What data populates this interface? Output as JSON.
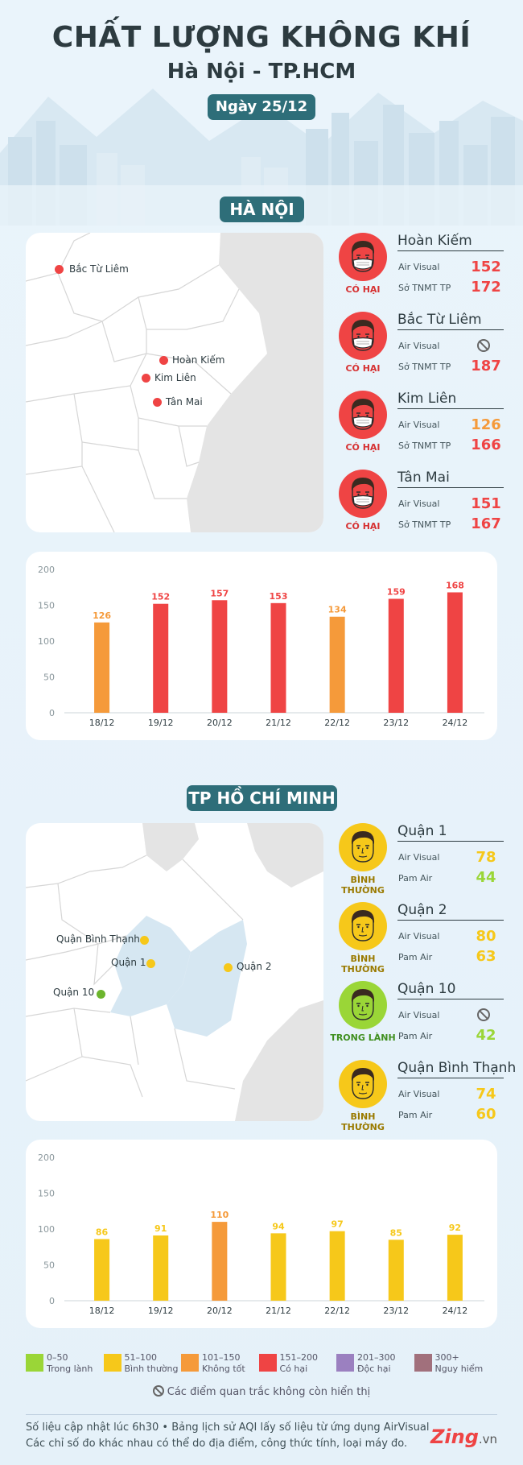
{
  "header": {
    "title": "CHẤT LƯỢNG KHÔNG KHÍ",
    "subtitle": "Hà Nội - TP.HCM",
    "date": "Ngày 25/12"
  },
  "colors": {
    "good": "#9ad637",
    "moderate": "#f6c81a",
    "sensitive": "#f59a3a",
    "unhealthy": "#ef4444",
    "very_unhealthy": "#9b80c0",
    "hazardous": "#a1707c",
    "pill": "#2e6e79"
  },
  "hanoi": {
    "section_title": "HÀ NỘI",
    "map_labels": [
      "Bắc Từ Liêm",
      "Hoàn Kiếm",
      "Kim Liên",
      "Tân Mai"
    ],
    "stations": [
      {
        "name": "Hoàn Kiếm",
        "status": "CÓ HẠI",
        "face_icon": "unhealthy-face-icon",
        "src1": "Air Visual",
        "v1": "152",
        "src2": "Sở TNMT TP",
        "v2": "172",
        "c1": "#ef4444",
        "c2": "#ef4444"
      },
      {
        "name": "Bắc Từ Liêm",
        "status": "CÓ HẠI",
        "face_icon": "unhealthy-face-icon",
        "src1": "Air Visual",
        "v1": null,
        "src2": "Sở TNMT TP",
        "v2": "187",
        "c1": "#ef4444",
        "c2": "#ef4444"
      },
      {
        "name": "Kim Liên",
        "status": "CÓ HẠI",
        "face_icon": "unhealthy-face-icon",
        "src1": "Air Visual",
        "v1": "126",
        "src2": "Sở TNMT TP",
        "v2": "166",
        "c1": "#f59a3a",
        "c2": "#ef4444"
      },
      {
        "name": "Tân Mai",
        "status": "CÓ HẠI",
        "face_icon": "unhealthy-face-icon",
        "src1": "Air Visual",
        "v1": "151",
        "src2": "Sở TNMT TP",
        "v2": "167",
        "c1": "#ef4444",
        "c2": "#ef4444"
      }
    ]
  },
  "hcm": {
    "section_title": "TP HỒ CHÍ MINH",
    "map_labels": [
      "Quận Bình Thạnh",
      "Quận 1",
      "Quận 2",
      "Quận 10"
    ],
    "stations": [
      {
        "name": "Quận 1",
        "status": "BÌNH THƯỜNG",
        "face_icon": "moderate-face-icon",
        "src1": "Air Visual",
        "v1": "78",
        "src2": "Pam Air",
        "v2": "44",
        "c1": "#f6c81a",
        "c2": "#9ad637"
      },
      {
        "name": "Quận 2",
        "status": "BÌNH THƯỜNG",
        "face_icon": "moderate-face-icon",
        "src1": "Air Visual",
        "v1": "80",
        "src2": "Pam Air",
        "v2": "63",
        "c1": "#f6c81a",
        "c2": "#f6c81a"
      },
      {
        "name": "Quận 10",
        "status": "TRONG LÀNH",
        "face_icon": "good-face-icon",
        "src1": "Air Visual",
        "v1": null,
        "src2": "Pam Air",
        "v2": "42",
        "c1": "#f6c81a",
        "c2": "#9ad637"
      },
      {
        "name": "Quận Bình Thạnh",
        "status": "BÌNH THƯỜNG",
        "face_icon": "moderate-face-icon",
        "src1": "Air Visual",
        "v1": "74",
        "src2": "Pam Air",
        "v2": "60",
        "c1": "#f6c81a",
        "c2": "#f6c81a"
      }
    ]
  },
  "chart_data": [
    {
      "type": "bar",
      "categories": [
        "18/12",
        "19/12",
        "20/12",
        "21/12",
        "22/12",
        "23/12",
        "24/12"
      ],
      "values": [
        126,
        152,
        157,
        153,
        134,
        159,
        168
      ],
      "bar_colors": [
        "#f59a3a",
        "#ef4444",
        "#ef4444",
        "#ef4444",
        "#f59a3a",
        "#ef4444",
        "#ef4444"
      ],
      "yticks": [
        "0",
        "50",
        "100",
        "150",
        "200"
      ],
      "ylim": [
        0,
        200
      ],
      "grid": false
    },
    {
      "type": "bar",
      "categories": [
        "18/12",
        "19/12",
        "20/12",
        "21/12",
        "22/12",
        "23/12",
        "24/12"
      ],
      "values": [
        86,
        91,
        110,
        94,
        97,
        85,
        92
      ],
      "bar_colors": [
        "#f6c81a",
        "#f6c81a",
        "#f59a3a",
        "#f6c81a",
        "#f6c81a",
        "#f6c81a",
        "#f6c81a"
      ],
      "yticks": [
        "0",
        "50",
        "100",
        "150",
        "200"
      ],
      "ylim": [
        0,
        200
      ],
      "grid": false
    }
  ],
  "legend": {
    "items": [
      {
        "range": "0–50",
        "name": "Trong lành",
        "color": "#9ad637"
      },
      {
        "range": "51–100",
        "name": "Bình thường",
        "color": "#f6c81a"
      },
      {
        "range": "101–150",
        "name": "Không tốt",
        "color": "#f59a3a"
      },
      {
        "range": "151–200",
        "name": "Có hại",
        "color": "#ef4444"
      },
      {
        "range": "201–300",
        "name": "Độc hại",
        "color": "#9b80c0"
      },
      {
        "range": "300+",
        "name": "Nguy hiểm",
        "color": "#a1707c"
      }
    ],
    "note": "Các điểm quan trắc không còn hiển thị"
  },
  "footer": {
    "line1": "Số liệu cập nhật lúc 6h30 • Bảng lịch sử AQI lấy số liệu từ ứng dụng AirVisual",
    "line2": "Các chỉ số đo khác nhau có thể do địa điểm, công thức tính, loại máy đo.",
    "brand": "Zing",
    "brand_suffix": ".vn"
  }
}
